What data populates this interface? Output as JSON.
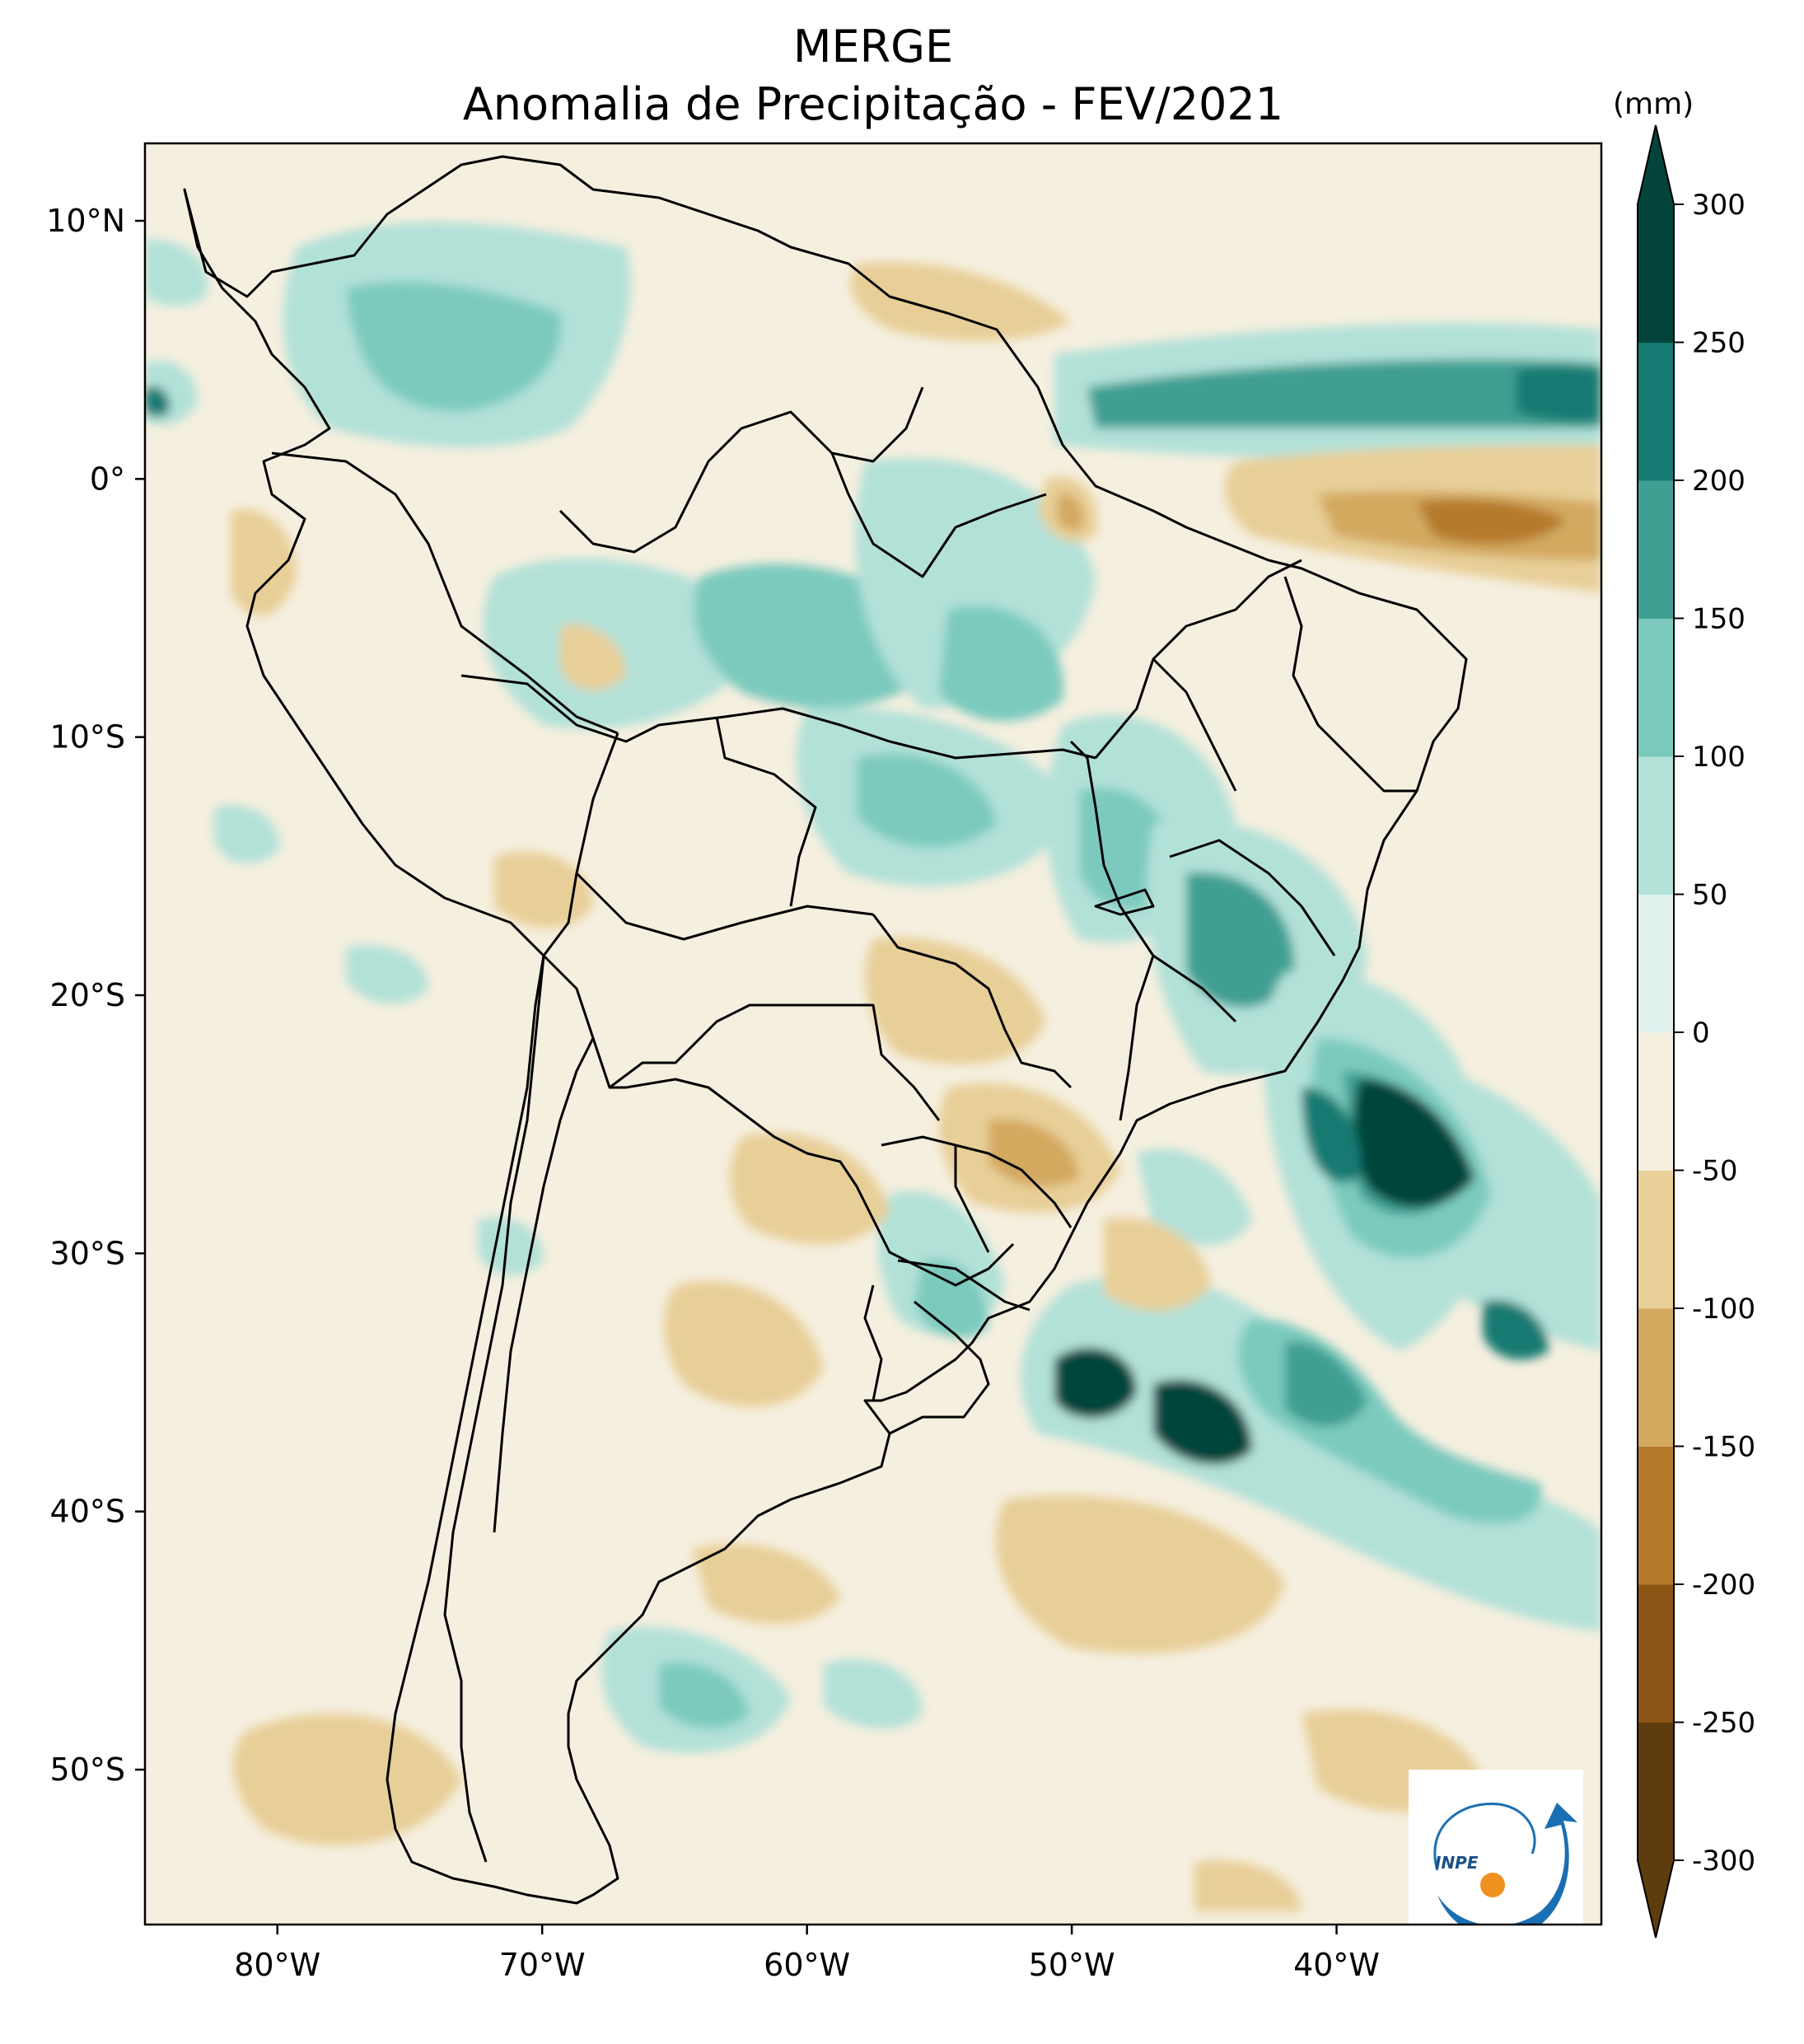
{
  "title": "MERGE",
  "subtitle": "Anomalia de Precipitação - FEV/2021",
  "colorbar": {
    "unit": "(mm)",
    "levels": [
      -300,
      -250,
      -200,
      -150,
      -100,
      -50,
      0,
      50,
      100,
      150,
      200,
      250,
      300
    ],
    "tick_labels": [
      "-300",
      "-250",
      "-200",
      "-150",
      "-100",
      "-50",
      "0",
      "50",
      "100",
      "150",
      "200",
      "250",
      "300"
    ],
    "colors": [
      "#5e3c0e",
      "#8a5414",
      "#b57a2c",
      "#d3a960",
      "#e8cf98",
      "#f5efdf",
      "#e0f1ee",
      "#b2e1d8",
      "#7ccabe",
      "#3f9f93",
      "#147a72",
      "#02443b"
    ],
    "extend": "both"
  },
  "map": {
    "lon_range": [
      -85,
      -30
    ],
    "lat_range": [
      -56,
      13
    ],
    "x_ticks": [
      -80,
      -70,
      -60,
      -50,
      -40
    ],
    "x_tick_labels": [
      "80°W",
      "70°W",
      "60°W",
      "50°W",
      "40°W"
    ],
    "y_ticks": [
      10,
      0,
      -10,
      -20,
      -30,
      -40,
      -50
    ],
    "y_tick_labels": [
      "10°N",
      "0°",
      "10°S",
      "20°S",
      "30°S",
      "40°S",
      "50°S"
    ],
    "background_color": "#f5efdf"
  },
  "logo": {
    "text": "INPE"
  }
}
